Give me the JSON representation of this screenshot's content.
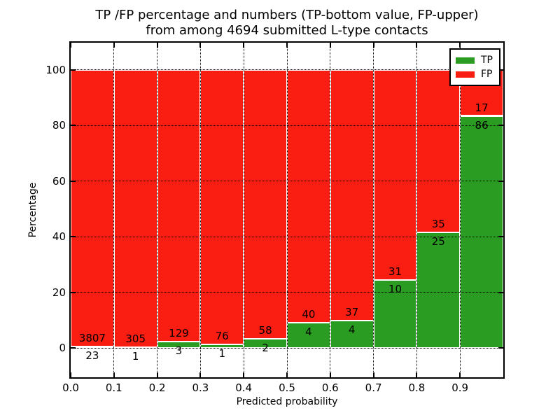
{
  "title": {
    "line1": "TP /FP percentage and numbers (TP-bottom value, FP-upper)",
    "line2": "from among 4694 submitted L-type contacts"
  },
  "legend": {
    "items": [
      {
        "label": "TP",
        "color": "#2b9c22"
      },
      {
        "label": "FP",
        "color": "#fa1e12"
      }
    ]
  },
  "chart_data": {
    "type": "bar",
    "stacked": true,
    "title": "TP /FP percentage and numbers (TP-bottom value, FP-upper) from among 4694 submitted L-type contacts",
    "xlabel": "Predicted probability",
    "ylabel": "Percentage",
    "bin_starts": [
      0.0,
      0.1,
      0.2,
      0.3,
      0.4,
      0.5,
      0.6,
      0.7,
      0.8,
      0.9
    ],
    "bin_width": 0.1,
    "series": [
      {
        "name": "TP",
        "color": "#2b9c22",
        "counts": [
          23,
          1,
          3,
          1,
          2,
          4,
          4,
          10,
          25,
          86
        ],
        "pct": [
          0.6,
          0.33,
          2.27,
          1.3,
          3.33,
          9.09,
          9.76,
          24.39,
          41.67,
          83.5
        ]
      },
      {
        "name": "FP",
        "color": "#fa1e12",
        "counts": [
          3807,
          305,
          129,
          76,
          58,
          40,
          37,
          31,
          35,
          17
        ],
        "pct": [
          99.4,
          99.67,
          97.73,
          98.7,
          96.67,
          90.91,
          90.24,
          75.61,
          58.33,
          16.5
        ]
      }
    ],
    "x_tick_labels": [
      "0.0",
      "0.1",
      "0.2",
      "0.3",
      "0.4",
      "0.5",
      "0.6",
      "0.7",
      "0.8",
      "0.9"
    ],
    "y_tick_values": [
      0,
      20,
      40,
      60,
      80,
      100
    ],
    "y_tick_labels": [
      "0",
      "20",
      "40",
      "60",
      "80",
      "100"
    ],
    "xlim": [
      0.0,
      1.0
    ],
    "ylim": [
      -10.5,
      109.8
    ],
    "grid": "dotted",
    "legend_position": "upper right",
    "bar_edge_color": "#ffffff",
    "axes_color": "#000000"
  }
}
